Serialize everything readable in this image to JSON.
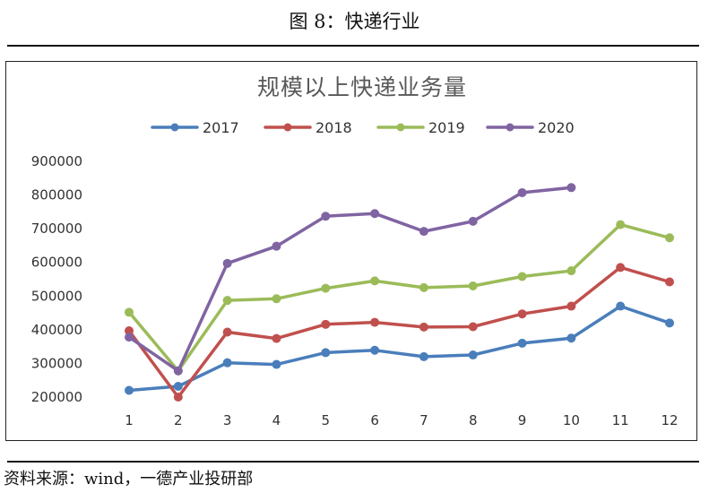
{
  "figure_title": "图 8：快递行业",
  "source_note": "资料来源：wind，一德产业投研部",
  "chart_data": {
    "type": "line",
    "title": "规模以上快递业务量",
    "xlabel": "",
    "ylabel": "",
    "categories": [
      "1",
      "2",
      "3",
      "4",
      "5",
      "6",
      "7",
      "8",
      "9",
      "10",
      "11",
      "12"
    ],
    "ylim": [
      200000,
      900000
    ],
    "yticks": [
      "200000",
      "300000",
      "400000",
      "500000",
      "600000",
      "700000",
      "800000",
      "900000"
    ],
    "grid": false,
    "legend_position": "top",
    "series": [
      {
        "name": "2017",
        "color": "#4a7ebb",
        "values": [
          220000,
          232000,
          302000,
          297000,
          332000,
          339000,
          320000,
          325000,
          360000,
          375000,
          470000,
          420000
        ]
      },
      {
        "name": "2018",
        "color": "#c0504d",
        "values": [
          397000,
          200000,
          393000,
          374000,
          416000,
          422000,
          408000,
          409000,
          447000,
          470000,
          585000,
          542000
        ]
      },
      {
        "name": "2019",
        "color": "#9bbb59",
        "values": [
          452000,
          278000,
          487000,
          492000,
          523000,
          545000,
          525000,
          530000,
          558000,
          575000,
          712000,
          673000
        ]
      },
      {
        "name": "2020",
        "color": "#8064a2",
        "values": [
          378000,
          278000,
          597000,
          648000,
          737000,
          745000,
          692000,
          722000,
          807000,
          822000,
          null,
          null
        ]
      }
    ]
  }
}
